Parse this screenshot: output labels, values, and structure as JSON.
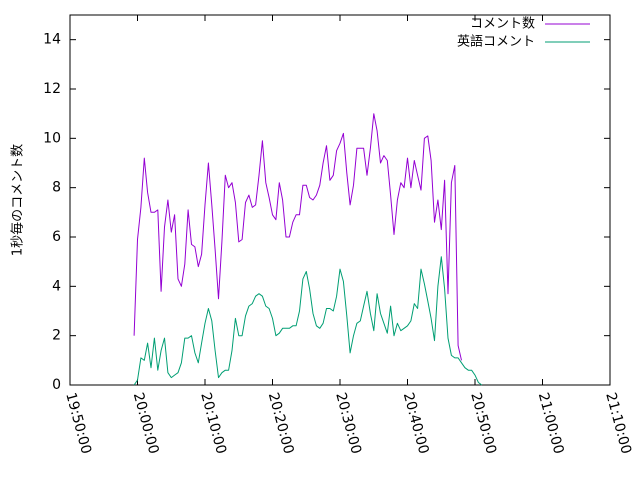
{
  "chart_data": {
    "type": "line",
    "ylabel": "1秒毎のコメント数",
    "xlabel": "",
    "ylim": [
      0,
      15
    ],
    "yticks": [
      0,
      2,
      4,
      6,
      8,
      10,
      12,
      14
    ],
    "xlim": [
      "19:50:00",
      "21:10:00"
    ],
    "xticks": [
      "19:50:00",
      "20:00:00",
      "20:10:00",
      "20:20:00",
      "20:30:00",
      "20:40:00",
      "20:50:00",
      "21:00:00",
      "21:10:00"
    ],
    "legend_position": "top-right",
    "grid": false,
    "series": [
      {
        "name": "コメント数",
        "color": "#9400d3",
        "points": [
          [
            "19:59:30",
            2.0
          ],
          [
            "20:00:00",
            5.9
          ],
          [
            "20:00:30",
            7.2
          ],
          [
            "20:01:00",
            9.2
          ],
          [
            "20:01:30",
            7.8
          ],
          [
            "20:02:00",
            7.0
          ],
          [
            "20:02:30",
            7.0
          ],
          [
            "20:03:00",
            7.1
          ],
          [
            "20:03:30",
            3.8
          ],
          [
            "20:04:00",
            6.4
          ],
          [
            "20:04:30",
            7.5
          ],
          [
            "20:05:00",
            6.2
          ],
          [
            "20:05:30",
            6.9
          ],
          [
            "20:06:00",
            4.3
          ],
          [
            "20:06:30",
            4.0
          ],
          [
            "20:07:00",
            4.9
          ],
          [
            "20:07:30",
            7.1
          ],
          [
            "20:08:00",
            5.7
          ],
          [
            "20:08:30",
            5.6
          ],
          [
            "20:09:00",
            4.8
          ],
          [
            "20:09:30",
            5.3
          ],
          [
            "20:10:00",
            7.3
          ],
          [
            "20:10:30",
            9.0
          ],
          [
            "20:11:00",
            7.3
          ],
          [
            "20:11:30",
            5.5
          ],
          [
            "20:12:00",
            3.5
          ],
          [
            "20:12:30",
            5.8
          ],
          [
            "20:13:00",
            8.5
          ],
          [
            "20:13:30",
            8.0
          ],
          [
            "20:14:00",
            8.2
          ],
          [
            "20:14:30",
            7.4
          ],
          [
            "20:15:00",
            5.8
          ],
          [
            "20:15:30",
            5.9
          ],
          [
            "20:16:00",
            7.4
          ],
          [
            "20:16:30",
            7.7
          ],
          [
            "20:17:00",
            7.2
          ],
          [
            "20:17:30",
            7.3
          ],
          [
            "20:18:00",
            8.5
          ],
          [
            "20:18:30",
            9.9
          ],
          [
            "20:19:00",
            8.2
          ],
          [
            "20:19:30",
            7.6
          ],
          [
            "20:20:00",
            6.9
          ],
          [
            "20:20:30",
            6.7
          ],
          [
            "20:21:00",
            8.2
          ],
          [
            "20:21:30",
            7.5
          ],
          [
            "20:22:00",
            6.0
          ],
          [
            "20:22:30",
            6.0
          ],
          [
            "20:23:00",
            6.6
          ],
          [
            "20:23:30",
            6.9
          ],
          [
            "20:24:00",
            6.9
          ],
          [
            "20:24:30",
            8.1
          ],
          [
            "20:25:00",
            8.1
          ],
          [
            "20:25:30",
            7.6
          ],
          [
            "20:26:00",
            7.5
          ],
          [
            "20:26:30",
            7.7
          ],
          [
            "20:27:00",
            8.1
          ],
          [
            "20:27:30",
            9.0
          ],
          [
            "20:28:00",
            9.7
          ],
          [
            "20:28:30",
            8.3
          ],
          [
            "20:29:00",
            8.5
          ],
          [
            "20:29:30",
            9.5
          ],
          [
            "20:30:00",
            9.8
          ],
          [
            "20:30:30",
            10.2
          ],
          [
            "20:31:00",
            8.6
          ],
          [
            "20:31:30",
            7.3
          ],
          [
            "20:32:00",
            8.1
          ],
          [
            "20:32:30",
            9.6
          ],
          [
            "20:33:00",
            9.6
          ],
          [
            "20:33:30",
            9.6
          ],
          [
            "20:34:00",
            8.5
          ],
          [
            "20:34:30",
            9.6
          ],
          [
            "20:35:00",
            11.0
          ],
          [
            "20:35:30",
            10.3
          ],
          [
            "20:36:00",
            9.0
          ],
          [
            "20:36:30",
            9.3
          ],
          [
            "20:37:00",
            9.1
          ],
          [
            "20:37:30",
            7.7
          ],
          [
            "20:38:00",
            6.1
          ],
          [
            "20:38:30",
            7.5
          ],
          [
            "20:39:00",
            8.2
          ],
          [
            "20:39:30",
            8.0
          ],
          [
            "20:40:00",
            9.2
          ],
          [
            "20:40:30",
            8.0
          ],
          [
            "20:41:00",
            9.1
          ],
          [
            "20:41:30",
            8.5
          ],
          [
            "20:42:00",
            7.9
          ],
          [
            "20:42:30",
            10.0
          ],
          [
            "20:43:00",
            10.1
          ],
          [
            "20:43:30",
            9.1
          ],
          [
            "20:44:00",
            6.6
          ],
          [
            "20:44:30",
            7.5
          ],
          [
            "20:45:00",
            6.3
          ],
          [
            "20:45:30",
            8.3
          ],
          [
            "20:46:00",
            3.7
          ],
          [
            "20:46:30",
            8.2
          ],
          [
            "20:47:00",
            8.9
          ],
          [
            "20:47:30",
            1.6
          ],
          [
            "20:48:00",
            1.0
          ]
        ]
      },
      {
        "name": "英語コメント",
        "color": "#009e73",
        "points": [
          [
            "19:59:30",
            0.0
          ],
          [
            "20:00:00",
            0.2
          ],
          [
            "20:00:30",
            1.1
          ],
          [
            "20:01:00",
            1.0
          ],
          [
            "20:01:30",
            1.7
          ],
          [
            "20:02:00",
            0.7
          ],
          [
            "20:02:30",
            1.9
          ],
          [
            "20:03:00",
            0.6
          ],
          [
            "20:03:30",
            1.4
          ],
          [
            "20:04:00",
            1.9
          ],
          [
            "20:04:30",
            0.5
          ],
          [
            "20:05:00",
            0.3
          ],
          [
            "20:05:30",
            0.4
          ],
          [
            "20:06:00",
            0.5
          ],
          [
            "20:06:30",
            0.9
          ],
          [
            "20:07:00",
            1.9
          ],
          [
            "20:07:30",
            1.9
          ],
          [
            "20:08:00",
            2.0
          ],
          [
            "20:08:30",
            1.3
          ],
          [
            "20:09:00",
            0.9
          ],
          [
            "20:09:30",
            1.7
          ],
          [
            "20:10:00",
            2.5
          ],
          [
            "20:10:30",
            3.1
          ],
          [
            "20:11:00",
            2.6
          ],
          [
            "20:11:30",
            1.4
          ],
          [
            "20:12:00",
            0.3
          ],
          [
            "20:12:30",
            0.5
          ],
          [
            "20:13:00",
            0.6
          ],
          [
            "20:13:30",
            0.6
          ],
          [
            "20:14:00",
            1.4
          ],
          [
            "20:14:30",
            2.7
          ],
          [
            "20:15:00",
            2.0
          ],
          [
            "20:15:30",
            2.0
          ],
          [
            "20:16:00",
            2.8
          ],
          [
            "20:16:30",
            3.2
          ],
          [
            "20:17:00",
            3.3
          ],
          [
            "20:17:30",
            3.6
          ],
          [
            "20:18:00",
            3.7
          ],
          [
            "20:18:30",
            3.6
          ],
          [
            "20:19:00",
            3.2
          ],
          [
            "20:19:30",
            3.1
          ],
          [
            "20:20:00",
            2.7
          ],
          [
            "20:20:30",
            2.0
          ],
          [
            "20:21:00",
            2.1
          ],
          [
            "20:21:30",
            2.3
          ],
          [
            "20:22:00",
            2.3
          ],
          [
            "20:22:30",
            2.3
          ],
          [
            "20:23:00",
            2.4
          ],
          [
            "20:23:30",
            2.4
          ],
          [
            "20:24:00",
            3.0
          ],
          [
            "20:24:30",
            4.3
          ],
          [
            "20:25:00",
            4.6
          ],
          [
            "20:25:30",
            3.9
          ],
          [
            "20:26:00",
            2.9
          ],
          [
            "20:26:30",
            2.4
          ],
          [
            "20:27:00",
            2.3
          ],
          [
            "20:27:30",
            2.5
          ],
          [
            "20:28:00",
            3.1
          ],
          [
            "20:28:30",
            3.1
          ],
          [
            "20:29:00",
            3.0
          ],
          [
            "20:29:30",
            3.6
          ],
          [
            "20:30:00",
            4.7
          ],
          [
            "20:30:30",
            4.2
          ],
          [
            "20:31:00",
            2.8
          ],
          [
            "20:31:30",
            1.3
          ],
          [
            "20:32:00",
            2.0
          ],
          [
            "20:32:30",
            2.5
          ],
          [
            "20:33:00",
            2.6
          ],
          [
            "20:33:30",
            3.2
          ],
          [
            "20:34:00",
            3.8
          ],
          [
            "20:34:30",
            2.9
          ],
          [
            "20:35:00",
            2.2
          ],
          [
            "20:35:30",
            3.7
          ],
          [
            "20:36:00",
            2.9
          ],
          [
            "20:36:30",
            2.5
          ],
          [
            "20:37:00",
            2.1
          ],
          [
            "20:37:30",
            3.2
          ],
          [
            "20:38:00",
            2.0
          ],
          [
            "20:38:30",
            2.5
          ],
          [
            "20:39:00",
            2.2
          ],
          [
            "20:39:30",
            2.3
          ],
          [
            "20:40:00",
            2.4
          ],
          [
            "20:40:30",
            2.6
          ],
          [
            "20:41:00",
            3.3
          ],
          [
            "20:41:30",
            3.1
          ],
          [
            "20:42:00",
            4.7
          ],
          [
            "20:42:30",
            4.1
          ],
          [
            "20:43:00",
            3.4
          ],
          [
            "20:43:30",
            2.7
          ],
          [
            "20:44:00",
            1.8
          ],
          [
            "20:44:30",
            4.0
          ],
          [
            "20:45:00",
            5.2
          ],
          [
            "20:45:30",
            3.9
          ],
          [
            "20:46:00",
            1.9
          ],
          [
            "20:46:30",
            1.2
          ],
          [
            "20:47:00",
            1.1
          ],
          [
            "20:47:30",
            1.1
          ],
          [
            "20:48:00",
            0.9
          ],
          [
            "20:48:30",
            0.7
          ],
          [
            "20:49:00",
            0.6
          ],
          [
            "20:49:30",
            0.6
          ],
          [
            "20:50:00",
            0.4
          ],
          [
            "20:50:30",
            0.1
          ],
          [
            "20:51:00",
            0.0
          ]
        ]
      }
    ]
  }
}
